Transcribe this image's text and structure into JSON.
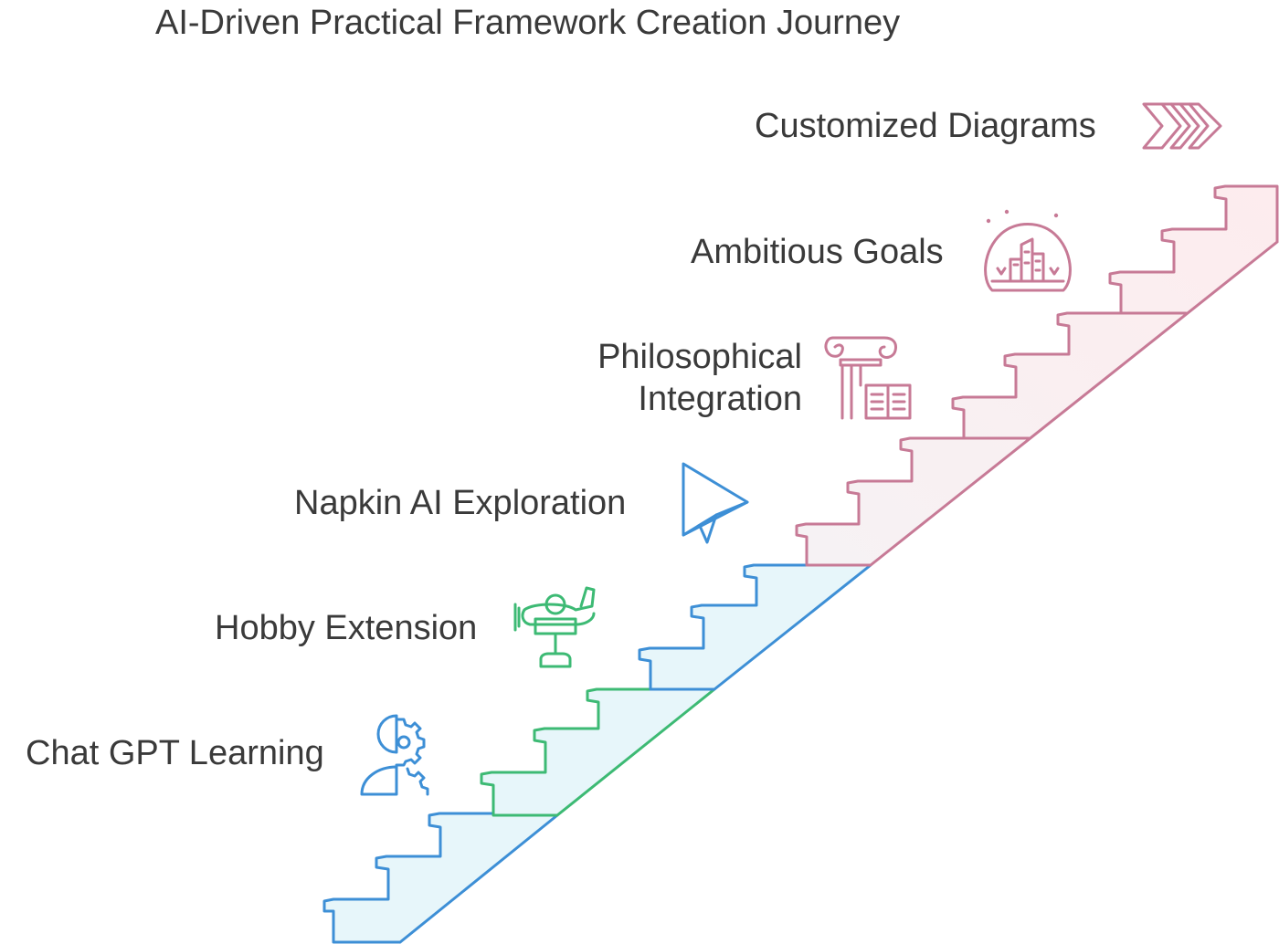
{
  "title": "AI-Driven Practical Framework Creation Journey",
  "stages": [
    {
      "label": "Chat GPT Learning",
      "icon": "person-gear-icon",
      "color": "#3d8fd6"
    },
    {
      "label": "Hobby Extension",
      "icon": "model-airplane-icon",
      "color": "#3dba74"
    },
    {
      "label": "Napkin AI Exploration",
      "icon": "paper-plane-icon",
      "color": "#3d8fd6"
    },
    {
      "label": "Philosophical Integration",
      "label_lines": [
        "Philosophical",
        "Integration"
      ],
      "icon": "column-book-icon",
      "color": "#c77a96"
    },
    {
      "label": "Ambitious Goals",
      "icon": "city-dome-icon",
      "color": "#c77a96"
    },
    {
      "label": "Customized Diagrams",
      "icon": "triple-chevron-icon",
      "color": "#c77a96"
    }
  ],
  "colors": {
    "blue": "#3d8fd6",
    "green": "#3dba74",
    "pink": "#c77a96",
    "blue_fill": "#e7f6fa",
    "pink_fill": "#fbeef0"
  }
}
